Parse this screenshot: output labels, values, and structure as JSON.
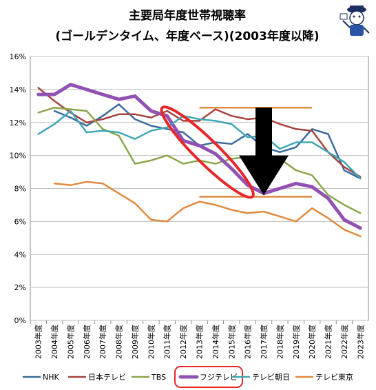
{
  "chart_data": {
    "type": "line",
    "title_line1": "主要局年度世帯視聴率",
    "title_line2": "(ゴールデンタイム、年度ベース)(2003年度以降)",
    "categories": [
      "2003年度",
      "2004年度",
      "2005年度",
      "2006年度",
      "2007年度",
      "2008年度",
      "2009年度",
      "2010年度",
      "2011年度",
      "2012年度",
      "2013年度",
      "2014年度",
      "2015年度",
      "2016年度",
      "2017年度",
      "2018年度",
      "2019年度",
      "2020年度",
      "2021年度",
      "2022年度",
      "2023年度"
    ],
    "ylim": [
      0,
      16
    ],
    "yticks": [
      "0%",
      "2%",
      "4%",
      "6%",
      "8%",
      "10%",
      "12%",
      "14%",
      "16%"
    ],
    "grid": true,
    "legend_position": "bottom",
    "series": [
      {
        "name": "NHK",
        "color": "#3b6a9c",
        "width": 2.5,
        "values": [
          null,
          12.7,
          12.3,
          11.8,
          12.4,
          13.1,
          12.2,
          11.8,
          11.6,
          11.4,
          10.6,
          10.8,
          10.7,
          11.3,
          10.5,
          10.2,
          10.5,
          11.6,
          11.3,
          9.1,
          8.6
        ]
      },
      {
        "name": "日本テレビ",
        "color": "#a6433f",
        "width": 2.5,
        "values": [
          14.1,
          13.3,
          12.6,
          12.0,
          12.2,
          12.5,
          12.5,
          12.3,
          12.7,
          12.1,
          12.1,
          12.8,
          12.4,
          12.2,
          12.3,
          11.9,
          11.6,
          11.5,
          10.2,
          9.3,
          8.7
        ]
      },
      {
        "name": "TBS",
        "color": "#8aa64a",
        "width": 2.5,
        "values": [
          12.6,
          12.9,
          12.8,
          12.7,
          11.6,
          11.2,
          9.5,
          9.7,
          10.0,
          9.5,
          9.7,
          9.5,
          9.8,
          9.9,
          10.0,
          9.8,
          9.1,
          8.8,
          7.6,
          7.0,
          6.5
        ]
      },
      {
        "name": "フジテレビ",
        "color": "#9152b3",
        "width": 5,
        "values": [
          13.7,
          13.7,
          14.3,
          14.0,
          13.7,
          13.4,
          13.6,
          12.7,
          12.4,
          10.9,
          10.6,
          10.1,
          9.2,
          8.2,
          7.7,
          8.0,
          8.3,
          8.1,
          7.4,
          6.1,
          5.6
        ]
      },
      {
        "name": "テレビ朝日",
        "color": "#3ea6b5",
        "width": 2.5,
        "values": [
          11.3,
          11.9,
          12.7,
          11.4,
          11.5,
          11.4,
          11.0,
          11.5,
          11.7,
          12.4,
          12.2,
          12.1,
          11.9,
          11.1,
          11.2,
          10.4,
          10.8,
          10.8,
          10.2,
          9.6,
          8.6
        ]
      },
      {
        "name": "テレビ東京",
        "color": "#e08a3f",
        "width": 2.5,
        "values": [
          null,
          8.3,
          8.2,
          8.4,
          8.3,
          7.7,
          7.1,
          6.1,
          6.0,
          6.8,
          7.2,
          7.0,
          6.7,
          6.5,
          6.6,
          6.3,
          6.0,
          6.8,
          6.2,
          5.5,
          5.1
        ]
      }
    ],
    "annotations": {
      "highlight_legend": "フジテレビ",
      "hline_top": {
        "value": 12.9,
        "from": "2013年度",
        "to": "2020年度",
        "color": "#e08a3f"
      },
      "hline_bottom": {
        "value": 7.5,
        "from": "2013年度",
        "to": "2020年度",
        "color": "#e08a3f"
      },
      "ellipse": {
        "color": "#e8262a"
      },
      "arrow": {
        "color": "#000000"
      }
    }
  }
}
